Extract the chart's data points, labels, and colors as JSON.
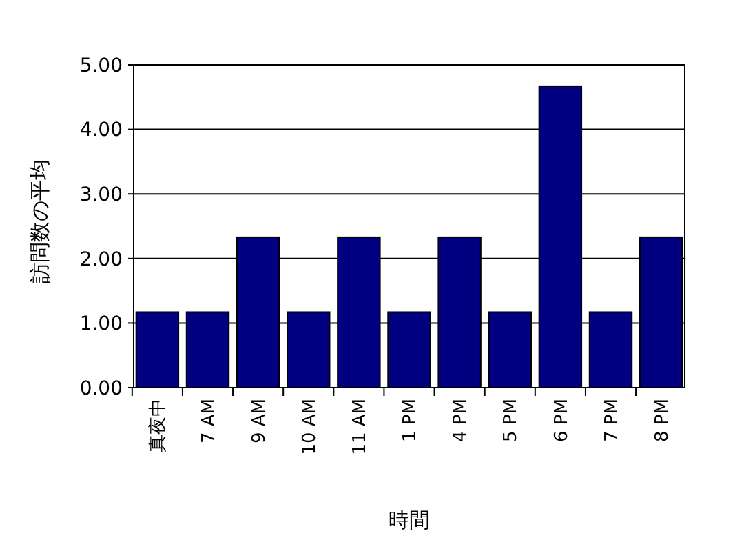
{
  "chart_data": {
    "type": "bar",
    "xlabel": "時間",
    "ylabel": "訪問数の平均",
    "categories": [
      "真夜中",
      "7 AM",
      "9 AM",
      "10 AM",
      "11 AM",
      "1 PM",
      "4 PM",
      "5 PM",
      "6 PM",
      "7 PM",
      "8 PM"
    ],
    "values": [
      1.17,
      1.17,
      2.33,
      1.17,
      2.33,
      1.17,
      2.33,
      1.17,
      4.67,
      1.17,
      2.33
    ],
    "color": "#000080",
    "ylim": [
      0,
      5
    ],
    "yticks": [
      {
        "value": 0,
        "label": "0.00"
      },
      {
        "value": 1,
        "label": "1.00"
      },
      {
        "value": 2,
        "label": "2.00"
      },
      {
        "value": 3,
        "label": "3.00"
      },
      {
        "value": 4,
        "label": "4.00"
      },
      {
        "value": 5,
        "label": "5.00"
      }
    ],
    "grid": "y"
  }
}
